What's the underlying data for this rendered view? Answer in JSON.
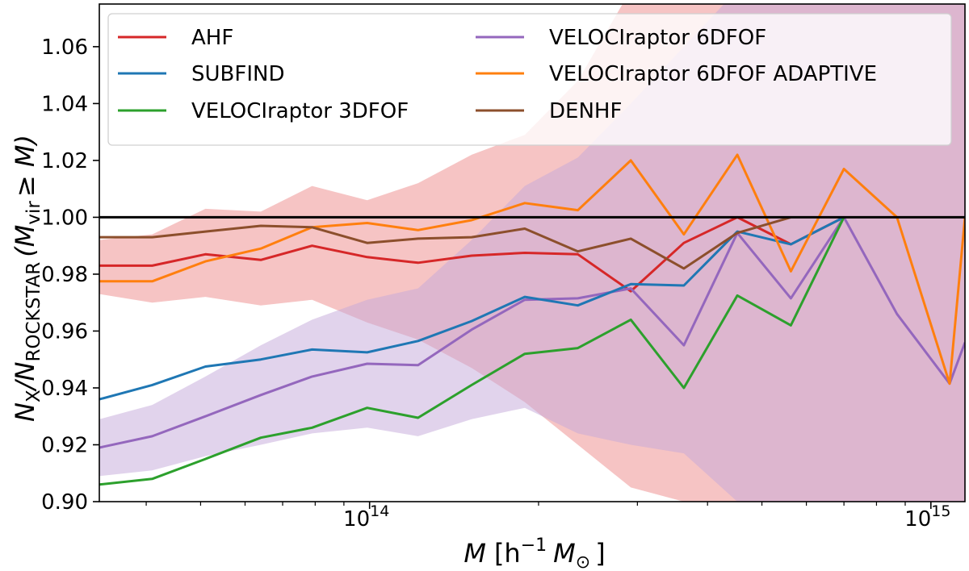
{
  "chart_data": {
    "type": "line",
    "x_scale": "log",
    "xlim": [
      33000000000000.0,
      1150000000000000.0
    ],
    "ylim": [
      0.9,
      1.075
    ],
    "xlabel": {
      "main": "M",
      "unit": "[h",
      "exp": "−1",
      "sym": "M",
      "sub": "⊙",
      "close": "]"
    },
    "ylabel": {
      "n1": "N",
      "sub1": "X",
      "slash": "/N",
      "sub2": "ROCKSTAR",
      "open": "(M",
      "sub3": "vir",
      "rest": "≥ M)"
    },
    "x_tick_labels": [
      {
        "base": "10",
        "exp": "14",
        "value": 100000000000000.0
      },
      {
        "base": "10",
        "exp": "15",
        "value": 1000000000000000.0
      }
    ],
    "y_ticks": [
      0.9,
      0.92,
      0.94,
      0.96,
      0.98,
      1.0,
      1.02,
      1.04,
      1.06
    ],
    "y_tick_labels": [
      "0.90",
      "0.92",
      "0.94",
      "0.96",
      "0.98",
      "1.00",
      "1.02",
      "1.04",
      "1.06"
    ],
    "reference_line": 1.0,
    "legend_position": "top",
    "x": [
      33000000000000.0,
      41000000000000.0,
      51000000000000.0,
      64000000000000.0,
      79000000000000.0,
      99000000000000.0,
      122000000000000.0,
      152000000000000.0,
      189000000000000.0,
      235000000000000.0,
      292000000000000.0,
      363000000000000.0,
      452000000000000.0,
      563000000000000.0,
      700000000000000.0,
      870000000000000.0,
      1080000000000000.0,
      1150000000000000.0
    ],
    "series": [
      {
        "name": "AHF",
        "color": "#d62728",
        "values": [
          0.983,
          0.983,
          0.987,
          0.985,
          0.99,
          0.986,
          0.984,
          0.9865,
          0.9875,
          0.987,
          0.974,
          0.991,
          1.0,
          0.9905,
          1.0,
          null,
          null,
          null
        ]
      },
      {
        "name": "VELOCIraptor 6DFOF",
        "color": "#9467bd",
        "values": [
          0.919,
          0.923,
          0.93,
          0.9375,
          0.944,
          0.9485,
          0.948,
          0.9605,
          0.971,
          0.9715,
          0.975,
          0.955,
          0.9945,
          0.9715,
          1.0,
          0.966,
          0.9415,
          0.956
        ]
      },
      {
        "name": "SUBFIND",
        "color": "#1f77b4",
        "values": [
          0.936,
          0.941,
          0.9475,
          0.95,
          0.9535,
          0.9525,
          0.9565,
          0.9635,
          0.972,
          0.969,
          0.9765,
          0.976,
          0.995,
          0.9905,
          1.0,
          null,
          null,
          null
        ]
      },
      {
        "name": "VELOCIraptor 6DFOF ADAPTIVE",
        "color": "#ff7f0e",
        "values": [
          0.9775,
          0.9775,
          0.9845,
          0.989,
          0.9965,
          0.998,
          0.9955,
          0.999,
          1.005,
          1.0025,
          1.02,
          0.994,
          1.022,
          0.981,
          1.017,
          1.0,
          0.9415,
          1.0
        ]
      },
      {
        "name": "VELOCIraptor 3DFOF",
        "color": "#2ca02c",
        "values": [
          0.906,
          0.908,
          0.915,
          0.9225,
          0.926,
          0.933,
          0.9295,
          0.941,
          0.952,
          0.954,
          0.964,
          0.94,
          0.9725,
          0.962,
          1.0,
          null,
          null,
          null
        ]
      },
      {
        "name": "DENHF",
        "color": "#8c4f2c",
        "values": [
          0.993,
          0.993,
          0.995,
          0.997,
          0.9965,
          0.991,
          0.9925,
          0.993,
          0.996,
          0.988,
          0.9925,
          0.982,
          0.9945,
          1.0,
          null,
          null,
          null,
          null
        ]
      }
    ],
    "bands": [
      {
        "name": "AHF band",
        "color": "#ee8a8a",
        "opacity": 0.5,
        "upper": [
          0.992,
          0.994,
          1.003,
          1.002,
          1.011,
          1.006,
          1.012,
          1.022,
          1.029,
          1.048,
          1.08,
          1.08,
          1.08,
          1.08,
          1.08,
          1.08,
          1.08,
          1.08
        ],
        "lower": [
          0.973,
          0.97,
          0.972,
          0.969,
          0.971,
          0.963,
          0.957,
          0.947,
          0.935,
          0.92,
          0.905,
          0.9,
          0.9,
          0.9,
          0.9,
          0.9,
          0.9,
          0.9
        ]
      },
      {
        "name": "VELOCIraptor 6DFOF band",
        "color": "#c3a8d9",
        "opacity": 0.5,
        "upper": [
          0.929,
          0.934,
          0.944,
          0.955,
          0.964,
          0.971,
          0.975,
          0.992,
          1.011,
          1.021,
          1.04,
          1.06,
          1.08,
          1.08,
          1.08,
          1.08,
          1.08,
          1.08
        ],
        "lower": [
          0.909,
          0.911,
          0.916,
          0.92,
          0.924,
          0.926,
          0.923,
          0.929,
          0.933,
          0.924,
          0.92,
          0.917,
          0.9,
          0.9,
          0.9,
          0.9,
          0.9,
          0.9
        ]
      }
    ],
    "legend": [
      {
        "name": "AHF",
        "color": "#d62728",
        "col": 0,
        "row": 0
      },
      {
        "name": "SUBFIND",
        "color": "#1f77b4",
        "col": 0,
        "row": 1
      },
      {
        "name": "VELOCIraptor 3DFOF",
        "color": "#2ca02c",
        "col": 0,
        "row": 2
      },
      {
        "name": "VELOCIraptor 6DFOF",
        "color": "#9467bd",
        "col": 1,
        "row": 0
      },
      {
        "name": "VELOCIraptor 6DFOF ADAPTIVE",
        "color": "#ff7f0e",
        "col": 1,
        "row": 1
      },
      {
        "name": "DENHF",
        "color": "#8c4f2c",
        "col": 1,
        "row": 2
      }
    ]
  }
}
